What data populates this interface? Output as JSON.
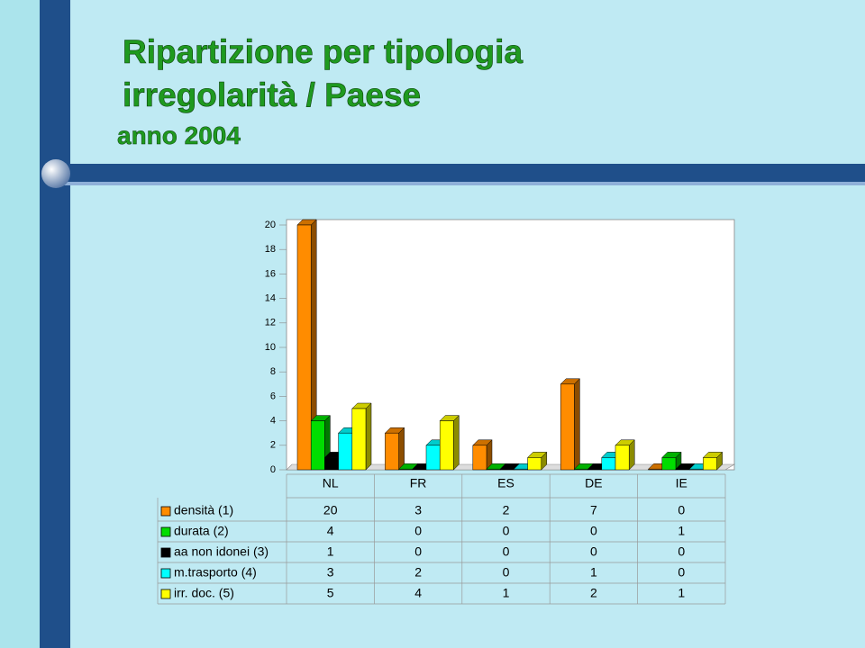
{
  "chart_data": {
    "type": "bar3d",
    "title": "Ripartizione per tipologia irregolarità / Paese",
    "subtitle": "anno 2004",
    "categories": [
      "NL",
      "FR",
      "ES",
      "DE",
      "IE"
    ],
    "series": [
      {
        "name": "densità (1)",
        "color": "#ff8c00",
        "values": [
          20,
          3,
          2,
          7,
          0
        ]
      },
      {
        "name": "durata (2)",
        "color": "#00dd00",
        "values": [
          4,
          0,
          0,
          0,
          1
        ]
      },
      {
        "name": "aa non idonei (3)",
        "color": "#000000",
        "values": [
          1,
          0,
          0,
          0,
          0
        ]
      },
      {
        "name": "m.trasporto (4)",
        "color": "#00ffff",
        "values": [
          3,
          2,
          0,
          1,
          0
        ]
      },
      {
        "name": "irr. doc. (5)",
        "color": "#ffff00",
        "values": [
          5,
          4,
          1,
          2,
          1
        ]
      }
    ],
    "ylim": [
      0,
      20
    ],
    "yticks": [
      0,
      2,
      4,
      6,
      8,
      10,
      12,
      14,
      16,
      18,
      20
    ]
  }
}
